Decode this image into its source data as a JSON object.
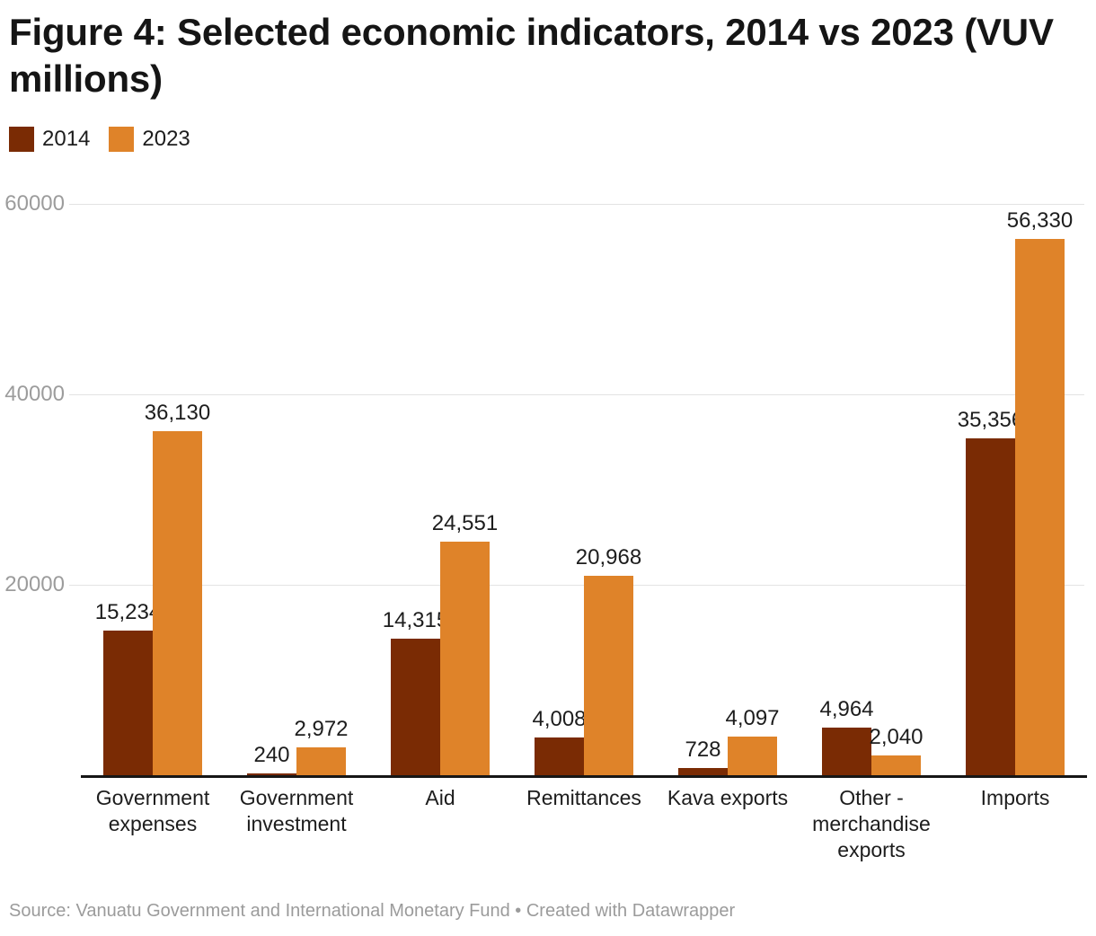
{
  "title": "Figure 4: Selected economic indicators, 2014 vs 2023 (VUV millions)",
  "legend": {
    "items": [
      {
        "label": "2014",
        "color": "#7a2b04"
      },
      {
        "label": "2023",
        "color": "#df8329"
      }
    ]
  },
  "source_note": "Source: Vanuatu Government and International Monetary Fund • Created with Datawrapper",
  "colors": {
    "series_2014": "#7a2b04",
    "series_2023": "#df8329",
    "gridline": "#e3e3e3",
    "axis_line": "#161616",
    "tick_text": "#9c9c9c",
    "label_text": "#1d1d1d",
    "source_text": "#9b9b9b"
  },
  "chart_data": {
    "type": "bar",
    "title": "Figure 4: Selected economic indicators, 2014 vs 2023 (VUV millions)",
    "categories": [
      "Government expenses",
      "Government investment",
      "Aid",
      "Remittances",
      "Kava exports",
      "Other - merchandise exports",
      "Imports"
    ],
    "series": [
      {
        "name": "2014",
        "color": "#7a2b04",
        "values": [
          15234,
          240,
          14315,
          4008,
          728,
          4964,
          35356
        ]
      },
      {
        "name": "2023",
        "color": "#df8329",
        "values": [
          36130,
          2972,
          24551,
          20968,
          4097,
          2040,
          56330
        ]
      }
    ],
    "value_labels_shown": true,
    "xlabel": "",
    "ylabel": "",
    "ylim": [
      0,
      60000
    ],
    "yticks": [
      20000,
      40000,
      60000
    ],
    "grid": true,
    "legend_position": "top-left"
  }
}
